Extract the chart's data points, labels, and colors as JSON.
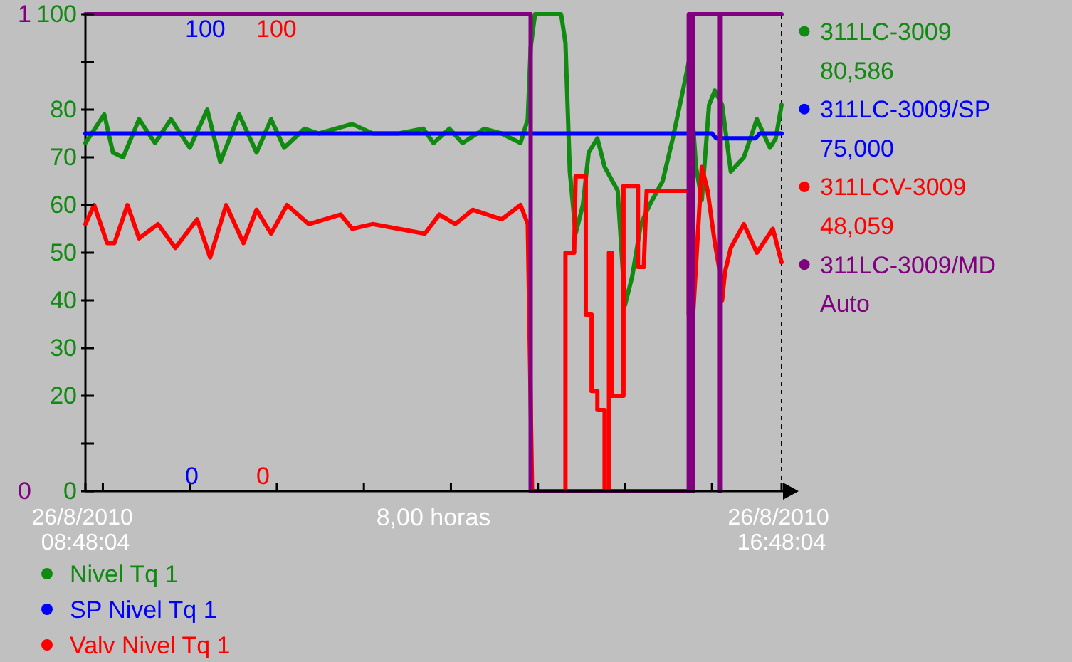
{
  "chart_data": {
    "type": "line",
    "xlabel": "8,00 horas",
    "xlim": [
      "2010-08-26T08:48",
      "2010-08-26T16:48"
    ],
    "xticks": [
      {
        "value": "2010-08-26T08:48",
        "label": "26/8/2010 08:48:04"
      },
      {
        "value": "2010-08-26T09:00",
        "label": null
      },
      {
        "value": "2010-08-26T10:00",
        "label": null
      },
      {
        "value": "2010-08-26T11:00",
        "label": null
      },
      {
        "value": "2010-08-26T12:00",
        "label": null
      },
      {
        "value": "2010-08-26T13:00",
        "label": null
      },
      {
        "value": "2010-08-26T14:00",
        "label": null
      },
      {
        "value": "2010-08-26T15:00",
        "label": null
      },
      {
        "value": "2010-08-26T16:00",
        "label": null
      },
      {
        "value": "2010-08-26T16:48",
        "label": "26/8/2010 16:48:04"
      }
    ],
    "ylim": [
      0,
      100
    ],
    "yticks": [
      0,
      {
        "value": 10,
        "label": null
      },
      20,
      30,
      40,
      50,
      60,
      70,
      80,
      {
        "value": 90,
        "label": null
      },
      100
    ],
    "y2lim": [
      0,
      1
    ],
    "y2ticks": [
      0,
      1
    ],
    "legend": "bottom",
    "line_style": "solid",
    "annotations": [
      "311LC-3009",
      "80,586",
      "311LC-3009/SP",
      "75,000",
      "311LCV-3009",
      "48,059",
      "311LC-3009/MD",
      "Auto",
      "100",
      "0",
      "100",
      "0"
    ],
    "series": [
      {
        "name": "Nivel Tq 1",
        "color": "#118a11",
        "x": [
          "2010-08-26T08:48",
          "2010-08-26T09:01",
          "2010-08-26T09:07",
          "2010-08-26T09:14",
          "2010-08-26T09:25",
          "2010-08-26T09:36",
          "2010-08-26T09:47",
          "2010-08-26T10:00",
          "2010-08-26T10:12",
          "2010-08-26T10:21",
          "2010-08-26T10:34",
          "2010-08-26T10:46",
          "2010-08-26T10:56",
          "2010-08-26T11:05",
          "2010-08-26T11:19",
          "2010-08-26T11:29",
          "2010-08-26T11:52",
          "2010-08-26T12:06",
          "2010-08-26T12:24",
          "2010-08-26T12:41",
          "2010-08-26T12:48",
          "2010-08-26T12:59",
          "2010-08-26T13:08",
          "2010-08-26T13:23",
          "2010-08-26T13:35",
          "2010-08-26T13:48",
          "2010-08-26T13:53",
          "2010-08-26T13:55",
          "2010-08-26T13:58",
          "2010-08-26T14:16",
          "2010-08-26T14:19",
          "2010-08-26T14:22",
          "2010-08-26T14:26",
          "2010-08-26T14:31",
          "2010-08-26T14:35",
          "2010-08-26T14:41",
          "2010-08-26T14:46",
          "2010-08-26T14:55",
          "2010-08-26T15:00",
          "2010-08-26T15:05",
          "2010-08-26T15:11",
          "2010-08-26T15:17",
          "2010-08-26T15:26",
          "2010-08-26T15:33",
          "2010-08-26T15:40",
          "2010-08-26T15:44",
          "2010-08-26T15:49",
          "2010-08-26T15:53",
          "2010-08-26T15:58",
          "2010-08-26T16:02",
          "2010-08-26T16:07",
          "2010-08-26T16:13",
          "2010-08-26T16:22",
          "2010-08-26T16:31",
          "2010-08-26T16:40",
          "2010-08-26T16:44",
          "2010-08-26T16:48"
        ],
        "values": [
          73,
          79,
          71,
          70,
          78,
          73,
          78,
          72,
          80,
          69,
          79,
          71,
          78,
          72,
          76,
          75,
          77,
          75,
          75,
          76,
          73,
          76,
          73,
          76,
          75,
          73,
          78,
          93,
          100,
          100,
          94,
          67,
          54,
          60,
          71,
          74,
          68,
          63,
          39,
          45,
          56,
          60,
          65,
          74,
          84,
          90,
          68,
          61,
          81,
          84,
          81,
          67,
          70,
          78,
          72,
          74,
          81
        ]
      },
      {
        "name": "SP Nivel Tq 1",
        "color": "#0000ff",
        "x": [
          "2010-08-26T08:48",
          "2010-08-26T16:00",
          "2010-08-26T16:03",
          "2010-08-26T16:30",
          "2010-08-26T16:33",
          "2010-08-26T16:48"
        ],
        "values": [
          75,
          75,
          74,
          74,
          75,
          75
        ]
      },
      {
        "name": "Valv Nivel Tq 1",
        "color": "#ff0000",
        "x": [
          "2010-08-26T08:48",
          "2010-08-26T08:54",
          "2010-08-26T09:03",
          "2010-08-26T09:08",
          "2010-08-26T09:17",
          "2010-08-26T09:25",
          "2010-08-26T09:38",
          "2010-08-26T09:50",
          "2010-08-26T10:05",
          "2010-08-26T10:14",
          "2010-08-26T10:25",
          "2010-08-26T10:37",
          "2010-08-26T10:46",
          "2010-08-26T10:56",
          "2010-08-26T11:07",
          "2010-08-26T11:22",
          "2010-08-26T11:44",
          "2010-08-26T11:52",
          "2010-08-26T12:06",
          "2010-08-26T12:24",
          "2010-08-26T12:42",
          "2010-08-26T12:52",
          "2010-08-26T13:03",
          "2010-08-26T13:15",
          "2010-08-26T13:25",
          "2010-08-26T13:35",
          "2010-08-26T13:48",
          "2010-08-26T13:53",
          "2010-08-26T13:56",
          "2010-08-26T14:19",
          "2010-08-26T14:19",
          "2010-08-26T14:25",
          "2010-08-26T14:26",
          "2010-08-26T14:33",
          "2010-08-26T14:33",
          "2010-08-26T14:37",
          "2010-08-26T14:37",
          "2010-08-26T14:41",
          "2010-08-26T14:41",
          "2010-08-26T14:46",
          "2010-08-26T14:46",
          "2010-08-26T14:49",
          "2010-08-26T14:49",
          "2010-08-26T14:51",
          "2010-08-26T14:51",
          "2010-08-26T14:59",
          "2010-08-26T14:59",
          "2010-08-26T15:09",
          "2010-08-26T15:09",
          "2010-08-26T15:13",
          "2010-08-26T15:15",
          "2010-08-26T15:44",
          "2010-08-26T15:44",
          "2010-08-26T15:47",
          "2010-08-26T15:53",
          "2010-08-26T15:57",
          "2010-08-26T16:02",
          "2010-08-26T16:06",
          "2010-08-26T16:07",
          "2010-08-26T16:09",
          "2010-08-26T16:13",
          "2010-08-26T16:22",
          "2010-08-26T16:31",
          "2010-08-26T16:42",
          "2010-08-26T16:48"
        ],
        "values": [
          56,
          60,
          52,
          52,
          60,
          53,
          56,
          51,
          57,
          49,
          60,
          52,
          59,
          54,
          60,
          56,
          58,
          55,
          56,
          55,
          54,
          58,
          56,
          59,
          58,
          57,
          60,
          56,
          0,
          0,
          50,
          50,
          66,
          66,
          37,
          37,
          21,
          21,
          17,
          17,
          0,
          0,
          50,
          50,
          20,
          20,
          64,
          64,
          47,
          47,
          63,
          63,
          37,
          37,
          68,
          63,
          52,
          45,
          40,
          46,
          51,
          56,
          50,
          55,
          48
        ]
      },
      {
        "color": "#800080",
        "axis": "y2",
        "x": [
          "2010-08-26T08:48",
          "2010-08-26T13:55",
          "2010-08-26T13:55",
          "2010-08-26T15:44",
          "2010-08-26T15:44",
          "2010-08-26T15:46",
          "2010-08-26T15:46",
          "2010-08-26T15:47",
          "2010-08-26T15:47",
          "2010-08-26T16:05",
          "2010-08-26T16:05",
          "2010-08-26T16:06",
          "2010-08-26T16:06",
          "2010-08-26T16:48"
        ],
        "values": [
          1,
          1,
          0,
          0,
          1,
          1,
          0,
          0,
          1,
          1,
          0,
          0,
          1,
          1
        ]
      }
    ]
  }
}
